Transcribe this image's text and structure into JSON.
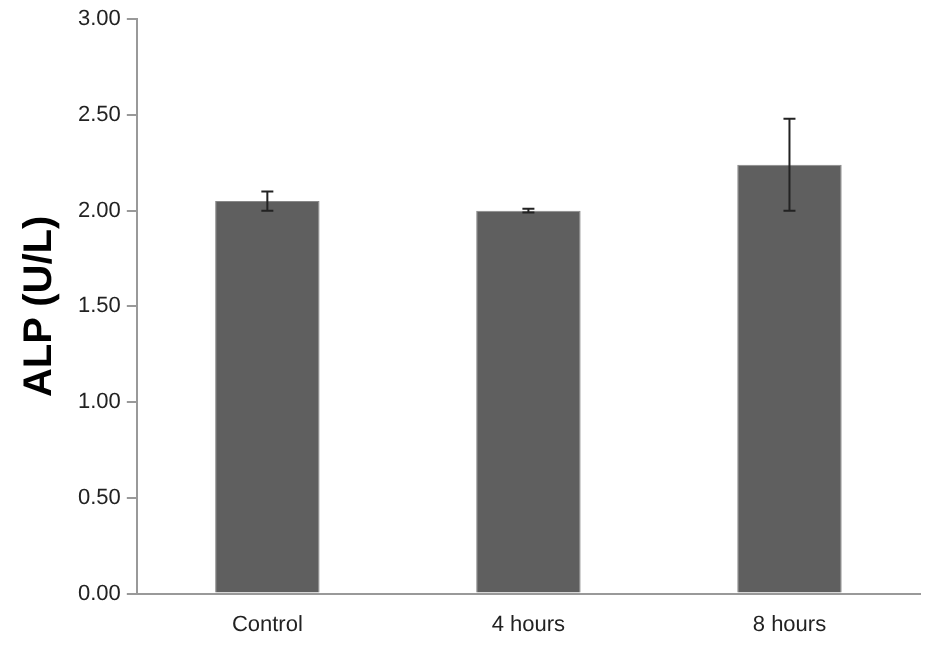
{
  "chart_data": {
    "type": "bar",
    "ylabel": "ALP (U/L)",
    "categories": [
      "Control",
      "4 hours",
      "8 hours"
    ],
    "values": [
      2.05,
      2.0,
      2.24
    ],
    "color": "#5f5f5f",
    "errors": [
      0.05,
      0.01,
      0.24
    ],
    "ylim": [
      0,
      3
    ],
    "yticks": [
      {
        "value": 0,
        "label": "0.00"
      },
      {
        "value": 0.5,
        "label": "0.50"
      },
      {
        "value": 1,
        "label": "1.00"
      },
      {
        "value": 1.5,
        "label": "1.50"
      },
      {
        "value": 2,
        "label": "2.00"
      },
      {
        "value": 2.5,
        "label": "2.50"
      },
      {
        "value": 3,
        "label": "3.00"
      }
    ],
    "grid": false,
    "legend": false
  }
}
